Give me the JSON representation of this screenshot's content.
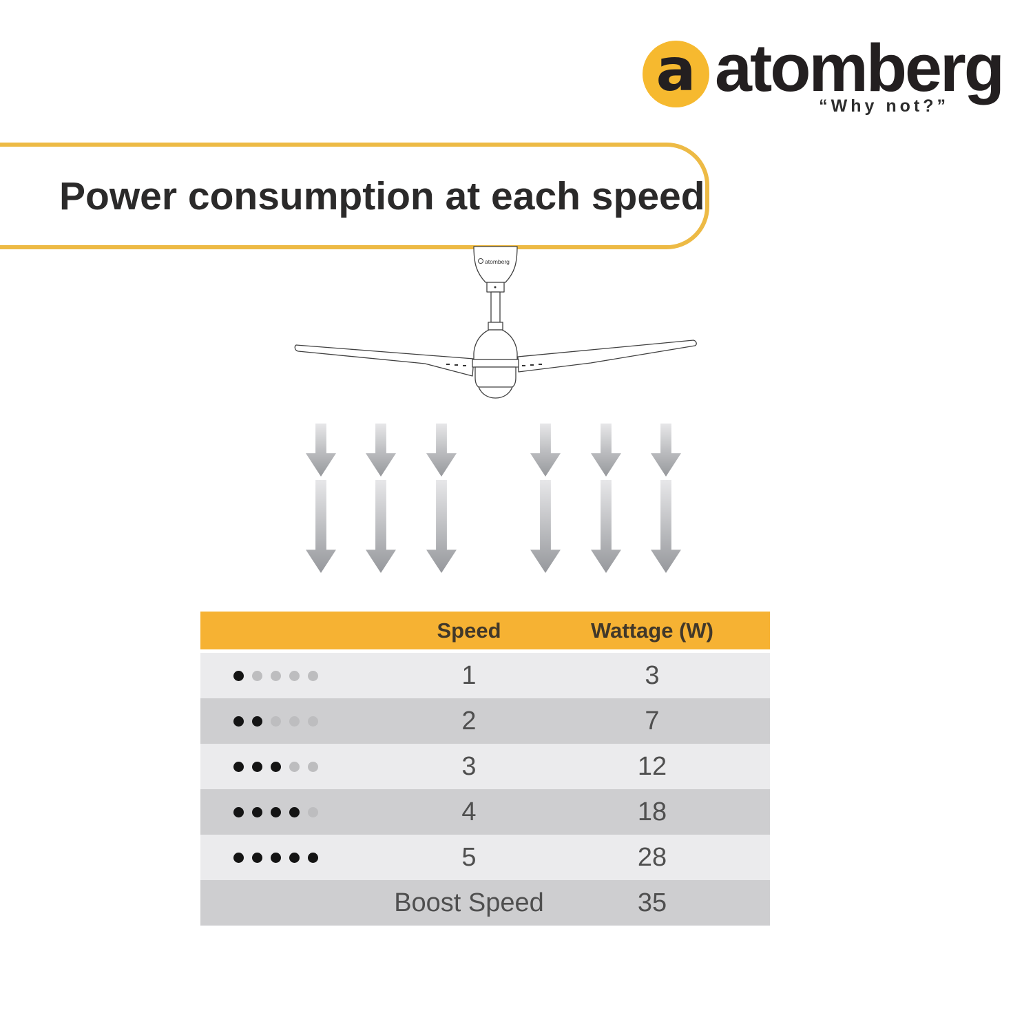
{
  "logo": {
    "brand": "atomberg",
    "monogram": "a",
    "tagline": "“Why not?”"
  },
  "banner": {
    "title": "Power consumption at each speed"
  },
  "fan": {
    "canopy_label": "atomberg"
  },
  "airflow": {
    "direction": "down",
    "arrow_columns": 6
  },
  "table": {
    "headers": {
      "speed": "Speed",
      "wattage": "Wattage (W)"
    },
    "rows": [
      {
        "dots_filled": 1,
        "dots_total": 5,
        "speed": "1",
        "wattage": "3"
      },
      {
        "dots_filled": 2,
        "dots_total": 5,
        "speed": "2",
        "wattage": "7"
      },
      {
        "dots_filled": 3,
        "dots_total": 5,
        "speed": "3",
        "wattage": "12"
      },
      {
        "dots_filled": 4,
        "dots_total": 5,
        "speed": "4",
        "wattage": "18"
      },
      {
        "dots_filled": 5,
        "dots_total": 5,
        "speed": "5",
        "wattage": "28"
      },
      {
        "dots_filled": 0,
        "dots_total": 0,
        "speed": "Boost Speed",
        "wattage": "35"
      }
    ]
  },
  "colors": {
    "brand_yellow": "#F6B92F",
    "banner_border_yellow": "#EDBA45",
    "table_header_yellow": "#F6B233",
    "row_light": "#EBEBED",
    "row_dark": "#CECED0",
    "dot_filled": "#141414",
    "dot_empty": "#BDBDBF"
  }
}
